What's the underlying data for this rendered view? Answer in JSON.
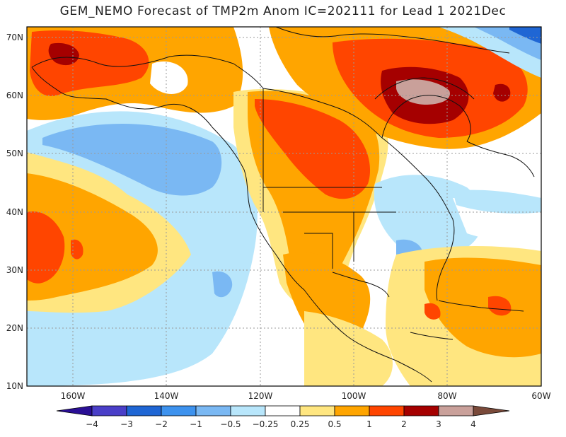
{
  "title": "GEM_NEMO Forecast of TMP2m Anom IC=202111 for Lead 1 2021Dec",
  "axes": {
    "lat_labels": [
      "70N",
      "60N",
      "50N",
      "40N",
      "30N",
      "20N",
      "10N"
    ],
    "lon_labels": [
      "160W",
      "140W",
      "120W",
      "100W",
      "80W",
      "60W"
    ]
  },
  "colorbar": {
    "ticks": [
      "−4",
      "−3",
      "−2",
      "−1",
      "−0.5",
      "−0.25",
      "0.25",
      "0.5",
      "1",
      "2",
      "3",
      "4"
    ],
    "colors": [
      "#2a0f95",
      "#4a3fc8",
      "#1f66d4",
      "#3d92ee",
      "#7ab8f3",
      "#b8e6fb",
      "#ffffff",
      "#ffe680",
      "#ffa500",
      "#ff4500",
      "#a50000",
      "#c9a09a",
      "#7a4a3a"
    ]
  },
  "field_colors": {
    "white": "#ffffff",
    "lightblue": "#b8e6fb",
    "blue": "#7ab8f3",
    "darkblue": "#3d92ee",
    "deepblue": "#1f66d4",
    "yellow": "#ffe680",
    "orange": "#ffa500",
    "redorange": "#ff4500",
    "darkred": "#a50000",
    "pink": "#c9a09a"
  }
}
